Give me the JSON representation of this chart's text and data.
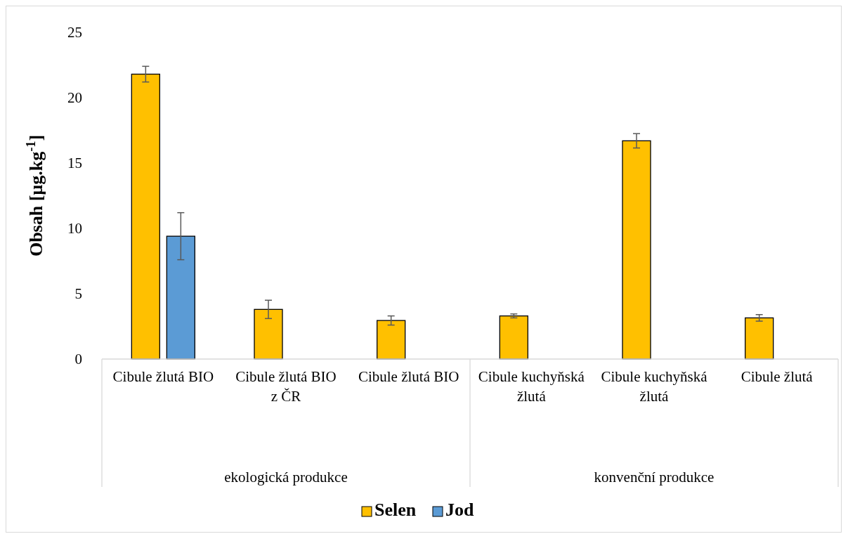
{
  "chart_data": {
    "type": "bar",
    "ylabel": "Obsah [µg.kg$^{-1}$]",
    "categories": [
      "Cibule žlutá BIO",
      "Cibule žlutá BIO z ČR",
      "Cibule žlutá BIO",
      "Cibule kuchyňská žlutá",
      "Cibule kuchyňská žlutá",
      "Cibule žlutá"
    ],
    "series": [
      {
        "name": "Selen",
        "color": "#ffc000",
        "values": [
          21.8,
          3.8,
          2.95,
          3.3,
          16.7,
          3.15
        ],
        "errors": [
          0.6,
          0.7,
          0.35,
          0.15,
          0.55,
          0.25
        ]
      },
      {
        "name": "Jod",
        "color": "#5b9bd5",
        "values": [
          9.4,
          null,
          null,
          null,
          null,
          null
        ],
        "errors": [
          1.8,
          null,
          null,
          null,
          null,
          null
        ]
      }
    ],
    "ylim": [
      0,
      25
    ],
    "yticks": [
      0,
      5,
      10,
      15,
      20,
      25
    ],
    "grid": false,
    "legend": "bottom",
    "annotations": [
      "ekologická produkce",
      "konvenční produkce"
    ]
  }
}
